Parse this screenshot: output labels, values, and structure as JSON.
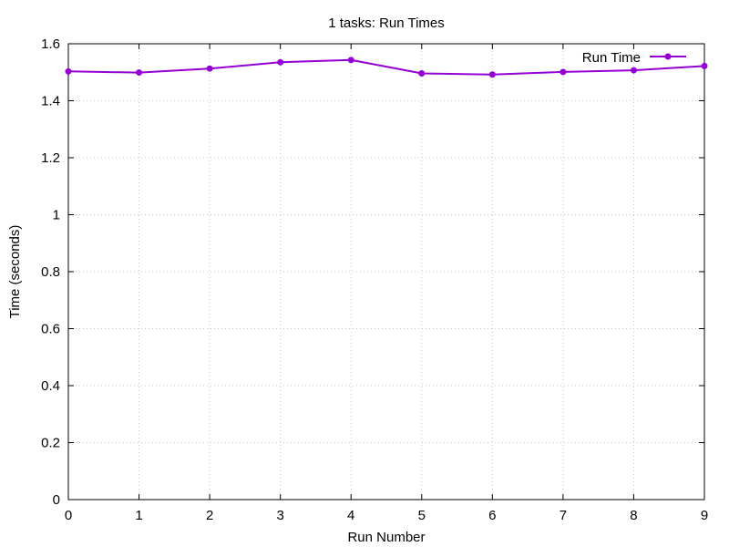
{
  "chart_data": {
    "type": "line",
    "title": "1 tasks: Run Times",
    "xlabel": "Run Number",
    "ylabel": "Time (seconds)",
    "xlim": [
      0,
      9
    ],
    "ylim": [
      0,
      1.6
    ],
    "x_ticks": [
      "0",
      "1",
      "2",
      "3",
      "4",
      "5",
      "6",
      "7",
      "8",
      "9"
    ],
    "y_ticks": [
      "0",
      "0.2",
      "0.4",
      "0.6",
      "0.8",
      "1",
      "1.2",
      "1.4",
      "1.6"
    ],
    "grid": true,
    "legend_position": "top-right",
    "series": [
      {
        "name": "Run Time",
        "color": "#9400d3",
        "marker": "circle",
        "x": [
          0,
          1,
          2,
          3,
          4,
          5,
          6,
          7,
          8,
          9
        ],
        "values": [
          1.503,
          1.499,
          1.513,
          1.535,
          1.543,
          1.496,
          1.492,
          1.501,
          1.507,
          1.522
        ]
      }
    ]
  }
}
